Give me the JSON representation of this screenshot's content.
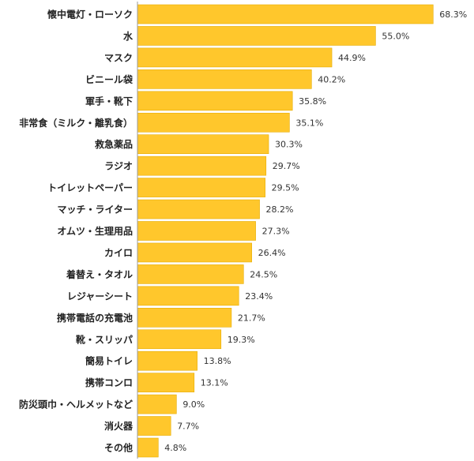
{
  "chart_data": {
    "type": "bar",
    "orientation": "horizontal",
    "categories": [
      "懐中電灯・ローソク",
      "水",
      "マスク",
      "ビニール袋",
      "軍手・靴下",
      "非常食（ミルク・離乳食）",
      "救急薬品",
      "ラジオ",
      "トイレットペーパー",
      "マッチ・ライター",
      "オムツ・生理用品",
      "カイロ",
      "着替え・タオル",
      "レジャーシート",
      "携帯電話の充電池",
      "靴・スリッパ",
      "簡易トイレ",
      "携帯コンロ",
      "防災頭巾・ヘルメットなど",
      "消火器",
      "その他"
    ],
    "values": [
      68.3,
      55.0,
      44.9,
      40.2,
      35.8,
      35.1,
      30.3,
      29.7,
      29.5,
      28.2,
      27.3,
      26.4,
      24.5,
      23.4,
      21.7,
      19.3,
      13.8,
      13.1,
      9.0,
      7.7,
      4.8
    ],
    "value_labels": [
      "68.3%",
      "55.0%",
      "44.9%",
      "40.2%",
      "35.8%",
      "35.1%",
      "30.3%",
      "29.7%",
      "29.5%",
      "28.2%",
      "27.3%",
      "26.4%",
      "24.5%",
      "23.4%",
      "21.7%",
      "19.3%",
      "13.8%",
      "13.1%",
      "9.0%",
      "7.7%",
      "4.8%"
    ],
    "xlim": [
      0,
      100
    ],
    "grid": false,
    "legend": false,
    "bar_color": "#FFC72C",
    "bar_edge_color": "#E6AC00"
  }
}
